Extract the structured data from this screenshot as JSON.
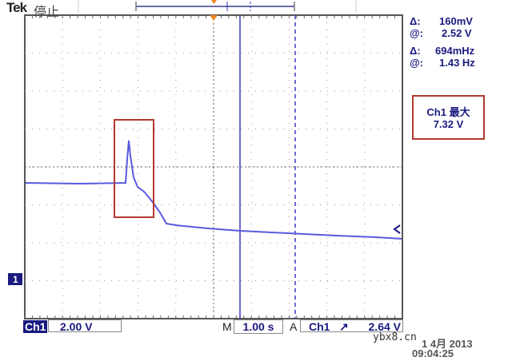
{
  "header": {
    "brand": "Tek",
    "state": "停止"
  },
  "cursor_readouts": [
    {
      "label": "Δ:",
      "value": "160mV"
    },
    {
      "label": "@:",
      "value": "2.52 V"
    },
    {
      "label": "Δ:",
      "value": "694mHz"
    },
    {
      "label": "@:",
      "value": "1.43 Hz"
    }
  ],
  "measurement": {
    "name": "Ch1 最大",
    "value": "7.32 V"
  },
  "footer": {
    "channel": "Ch1",
    "volts_div": "2.00 V",
    "m_label": "M",
    "timebase": "1.00 s",
    "a_label": "A",
    "trig_source": "Ch1",
    "trig_slope": "↗",
    "trig_level": "2.64 V",
    "date": "1 4月 2013",
    "time": "09:04:25",
    "watermark": "ybx8.cn"
  },
  "channel_marker": "1",
  "colors": {
    "trace": "#5a5ae0",
    "cursor": "#3a3ac0",
    "highlight": "#b03a2e",
    "trigger": "#f08a20"
  }
}
